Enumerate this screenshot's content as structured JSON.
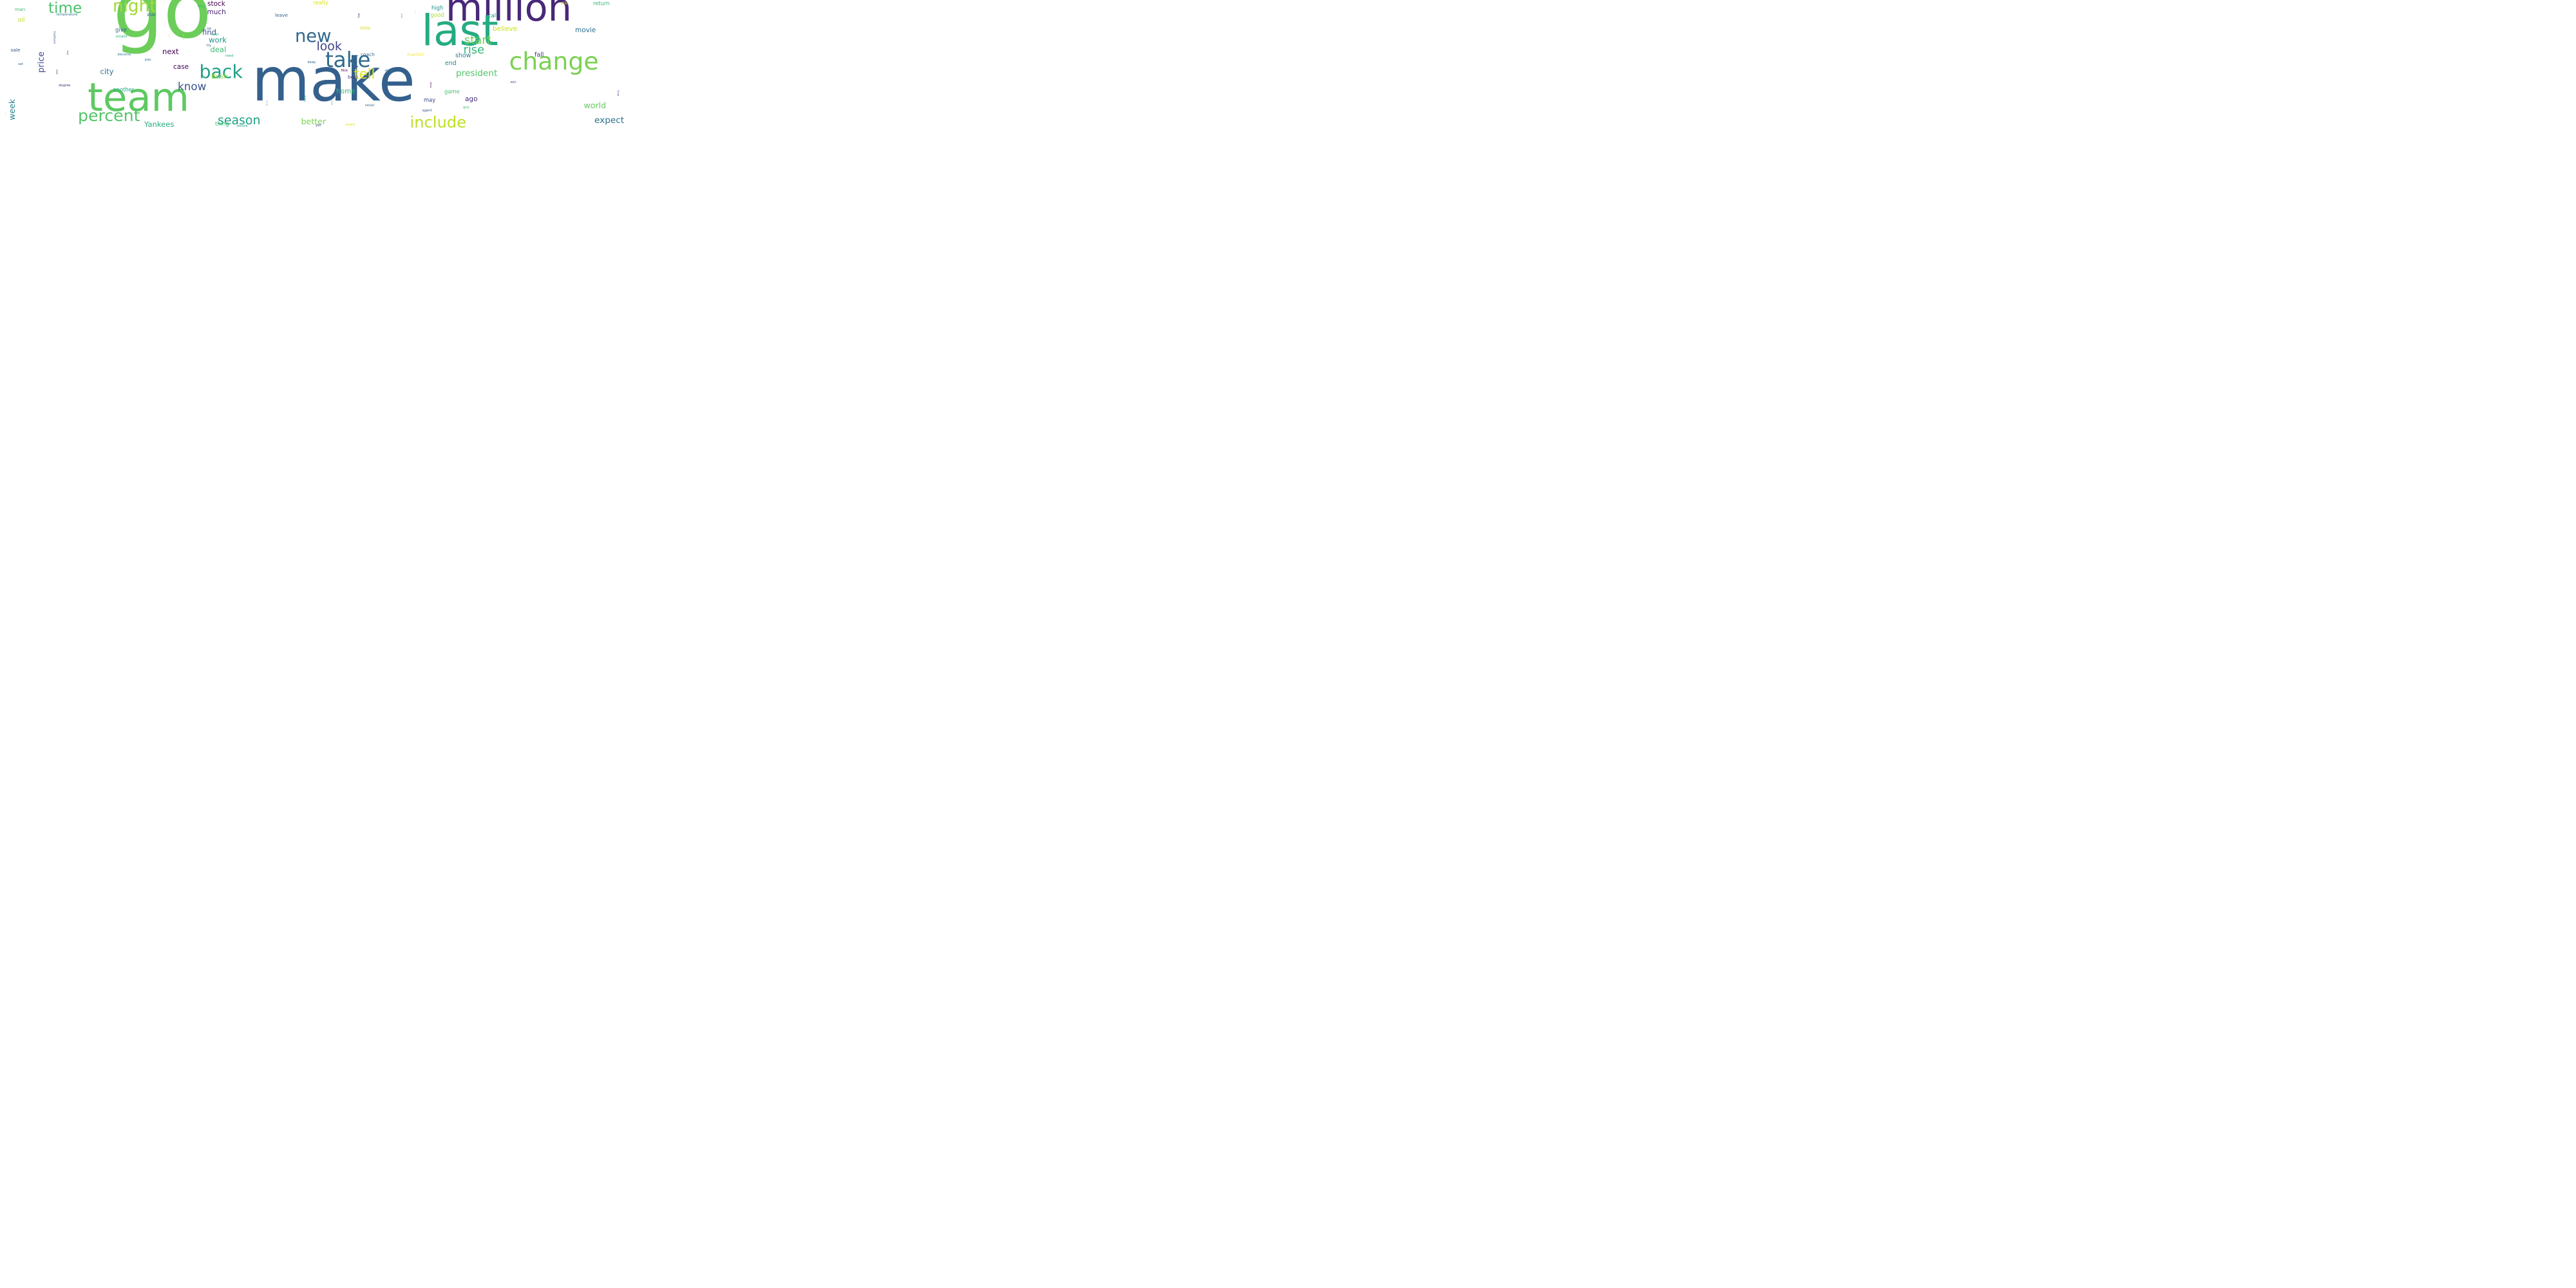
{
  "words": [
    {
      "text": "go",
      "color": "#6ccd5a"
    },
    {
      "text": "make",
      "color": "#34608d"
    },
    {
      "text": "million",
      "color": "#482878"
    },
    {
      "text": "last",
      "color": "#25ab82"
    },
    {
      "text": "team",
      "color": "#5ec962"
    },
    {
      "text": "change",
      "color": "#7ad151"
    },
    {
      "text": "week",
      "color": "#25848e"
    },
    {
      "text": "price",
      "color": "#3e4989"
    },
    {
      "text": "take",
      "color": "#2f6c8e"
    },
    {
      "text": "night",
      "color": "#a0da39"
    },
    {
      "text": "time",
      "color": "#4ac16d"
    },
    {
      "text": "new",
      "color": "#31688e"
    },
    {
      "text": "percent",
      "color": "#52c569"
    },
    {
      "text": "back",
      "color": "#1f9f88"
    },
    {
      "text": "company",
      "color": "#3b528b"
    },
    {
      "text": "include",
      "color": "#bddf26"
    },
    {
      "text": "season",
      "color": "#1fa187"
    },
    {
      "text": "look",
      "color": "#414487"
    },
    {
      "text": "start",
      "color": "#6ece58"
    },
    {
      "text": "rise",
      "color": "#35b779"
    },
    {
      "text": "tell",
      "color": "#e5e419"
    },
    {
      "text": "know",
      "color": "#39568c"
    },
    {
      "text": "president",
      "color": "#52c569"
    },
    {
      "text": "expect",
      "color": "#2c728e"
    },
    {
      "text": "better",
      "color": "#7ad151"
    },
    {
      "text": "world",
      "color": "#65cb5e"
    },
    {
      "text": "Yankees",
      "color": "#29af7f"
    },
    {
      "text": "work",
      "color": "#21918c"
    },
    {
      "text": "deal",
      "color": "#3dbc74"
    },
    {
      "text": "find",
      "color": "#3b528b"
    },
    {
      "text": "stock",
      "color": "#440154"
    },
    {
      "text": "much",
      "color": "#481f70"
    },
    {
      "text": "city",
      "color": "#2c728e"
    },
    {
      "text": "next",
      "color": "#440154"
    },
    {
      "text": "case",
      "color": "#440154"
    },
    {
      "text": "Bush",
      "color": "#8fd744"
    },
    {
      "text": "climate",
      "color": "#b5de2b"
    },
    {
      "text": "movie",
      "color": "#2d708e"
    },
    {
      "text": "believe",
      "color": "#cae11f"
    },
    {
      "text": "show",
      "color": "#287c8e"
    },
    {
      "text": "fall",
      "color": "#46327e"
    },
    {
      "text": "end",
      "color": "#23898e"
    },
    {
      "text": "ago",
      "color": "#472d7b"
    },
    {
      "text": "home",
      "color": "#35b779"
    },
    {
      "text": "think",
      "color": "#1e9b8a"
    },
    {
      "text": "begin",
      "color": "#471365"
    },
    {
      "text": "bring",
      "color": "#404688"
    },
    {
      "text": "game",
      "color": "#4ac16d"
    },
    {
      "text": "may",
      "color": "#3e4a89"
    },
    {
      "text": "another",
      "color": "#22a785"
    },
    {
      "text": "thing",
      "color": "#3dbc74"
    },
    {
      "text": "New_York",
      "color": "#365c8d"
    },
    {
      "text": "always",
      "color": "#1fa088"
    },
    {
      "text": "give",
      "color": "#31688e"
    },
    {
      "text": "oil",
      "color": "#c2df23"
    },
    {
      "text": "man",
      "color": "#3dbc74"
    },
    {
      "text": "high",
      "color": "#21918c"
    },
    {
      "text": "good",
      "color": "#a8db34"
    },
    {
      "text": "call",
      "color": "#20928c"
    },
    {
      "text": "return",
      "color": "#38b977"
    },
    {
      "text": "really",
      "color": "#dde318"
    },
    {
      "text": "leave",
      "color": "#34618d"
    },
    {
      "text": "star",
      "color": "#31688e"
    },
    {
      "text": "low",
      "color": "#46307e"
    },
    {
      "text": "global",
      "color": "#25848e"
    },
    {
      "text": "economy",
      "color": "#a8db34"
    },
    {
      "text": "play",
      "color": "#3e4c8a"
    },
    {
      "text": "sale",
      "color": "#3a548c"
    },
    {
      "text": "well",
      "color": "#481a6c"
    },
    {
      "text": "little",
      "color": "#d8e219"
    },
    {
      "text": "coach",
      "color": "#33638d"
    },
    {
      "text": "market",
      "color": "#fde725"
    },
    {
      "text": "best",
      "color": "#453781"
    },
    {
      "text": "still",
      "color": "#f1e51d"
    },
    {
      "text": "temperature",
      "color": "#2a788e"
    },
    {
      "text": "long",
      "color": "#35b779"
    },
    {
      "text": "school",
      "color": "#c2df23"
    },
    {
      "text": "lot",
      "color": "#3b528b"
    },
    {
      "text": "ever",
      "color": "#22a785"
    },
    {
      "text": "try",
      "color": "#33638d"
    },
    {
      "text": "need",
      "color": "#2db27d"
    },
    {
      "text": "people",
      "color": "#2db27d"
    },
    {
      "text": "become",
      "color": "#2a788e"
    },
    {
      "text": "pay",
      "color": "#2a788e"
    },
    {
      "text": "set",
      "color": "#32658e"
    },
    {
      "text": "keep",
      "color": "#31688e"
    },
    {
      "text": "way",
      "color": "#443983"
    },
    {
      "text": "flick",
      "color": "#440154"
    },
    {
      "text": "stand",
      "color": "#2d708e"
    },
    {
      "text": "degree",
      "color": "#453581"
    },
    {
      "text": "win",
      "color": "#3b528b"
    },
    {
      "text": "never",
      "color": "#306a8e"
    },
    {
      "text": "guy",
      "color": "#3dbc74"
    },
    {
      "text": "agent",
      "color": "#3b528b"
    },
    {
      "text": "former",
      "color": "#fde725"
    },
    {
      "text": "record",
      "color": "#1f9f88"
    },
    {
      "text": "yet",
      "color": "#453581"
    },
    {
      "text": "every",
      "color": "#d8e219"
    }
  ]
}
